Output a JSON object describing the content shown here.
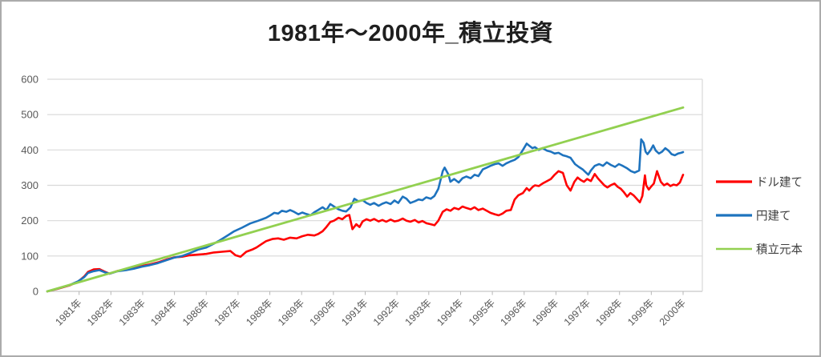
{
  "title": "1981年～2000年_積立投資",
  "colors": {
    "grid": "#d9d9d9",
    "axis_line": "#c6c6c6",
    "tick_mark": "#b7b7b7",
    "tick_text": "#595959",
    "title_text": "#1f1f1f",
    "legend_text": "#3f3f3f",
    "frame": "#ababab",
    "dollar_red": "#ff0000",
    "yen_blue": "#1e73be",
    "principal_green": "#92d050"
  },
  "chart_data": {
    "type": "line",
    "title": "1981年～2000年_積立投資",
    "xlabel": "",
    "ylabel": "",
    "ylim": [
      0,
      600
    ],
    "y_ticks": [
      0,
      100,
      200,
      300,
      400,
      500,
      600
    ],
    "grid": true,
    "legend_position": "right",
    "x_tick_labels": [
      "1981年",
      "1982年",
      "1983年",
      "1984年",
      "1986年",
      "1987年",
      "1988年",
      "1989年",
      "1990年",
      "1991年",
      "1992年",
      "1993年",
      "1994年",
      "1995年",
      "1996年",
      "1996年",
      "1997年",
      "1998年",
      "1999年",
      "2000年"
    ],
    "series": [
      {
        "name": "ドル建て",
        "color": "#ff0000",
        "points": [
          [
            0,
            0
          ],
          [
            1.6,
            7
          ],
          [
            3.5,
            17
          ],
          [
            4.8,
            27
          ],
          [
            5.8,
            42
          ],
          [
            6.4,
            55
          ],
          [
            7.3,
            62
          ],
          [
            8.2,
            63
          ],
          [
            9,
            56
          ],
          [
            9.8,
            50
          ],
          [
            11.1,
            58
          ],
          [
            12.4,
            62
          ],
          [
            13.6,
            66
          ],
          [
            14.9,
            72
          ],
          [
            16.1,
            76
          ],
          [
            17.4,
            82
          ],
          [
            18.7,
            90
          ],
          [
            19.9,
            96
          ],
          [
            21.2,
            98
          ],
          [
            22.4,
            102
          ],
          [
            23.7,
            104
          ],
          [
            25,
            106
          ],
          [
            26.2,
            110
          ],
          [
            27.5,
            112
          ],
          [
            28.8,
            114
          ],
          [
            29.6,
            102
          ],
          [
            30.4,
            98
          ],
          [
            31.3,
            112
          ],
          [
            32.2,
            118
          ],
          [
            32.9,
            124
          ],
          [
            33.8,
            135
          ],
          [
            34.4,
            142
          ],
          [
            35.4,
            148
          ],
          [
            36.3,
            150
          ],
          [
            37.2,
            146
          ],
          [
            38.2,
            152
          ],
          [
            39.2,
            150
          ],
          [
            40.1,
            156
          ],
          [
            41,
            160
          ],
          [
            42,
            158
          ],
          [
            42.6,
            162
          ],
          [
            43.3,
            170
          ],
          [
            43.9,
            182
          ],
          [
            44.5,
            196
          ],
          [
            45.1,
            200
          ],
          [
            45.8,
            208
          ],
          [
            46.4,
            204
          ],
          [
            47,
            213
          ],
          [
            47.5,
            216
          ],
          [
            48,
            176
          ],
          [
            48.6,
            190
          ],
          [
            49.1,
            182
          ],
          [
            49.6,
            198
          ],
          [
            50.2,
            204
          ],
          [
            50.8,
            200
          ],
          [
            51.4,
            205
          ],
          [
            52.1,
            198
          ],
          [
            52.7,
            202
          ],
          [
            53.3,
            197
          ],
          [
            54,
            203
          ],
          [
            54.6,
            198
          ],
          [
            55.2,
            200
          ],
          [
            55.9,
            206
          ],
          [
            56.5,
            200
          ],
          [
            57.1,
            197
          ],
          [
            57.8,
            202
          ],
          [
            58.4,
            195
          ],
          [
            59,
            199
          ],
          [
            59.6,
            193
          ],
          [
            60.3,
            190
          ],
          [
            60.9,
            187
          ],
          [
            61.5,
            200
          ],
          [
            62.2,
            225
          ],
          [
            62.8,
            232
          ],
          [
            63.4,
            228
          ],
          [
            64,
            236
          ],
          [
            64.7,
            232
          ],
          [
            65.3,
            240
          ],
          [
            65.9,
            236
          ],
          [
            66.6,
            232
          ],
          [
            67.2,
            238
          ],
          [
            67.8,
            230
          ],
          [
            68.5,
            234
          ],
          [
            69.1,
            228
          ],
          [
            69.7,
            222
          ],
          [
            70.4,
            218
          ],
          [
            71,
            215
          ],
          [
            71.6,
            220
          ],
          [
            72.2,
            228
          ],
          [
            72.9,
            230
          ],
          [
            73.5,
            260
          ],
          [
            74.1,
            272
          ],
          [
            74.8,
            278
          ],
          [
            75.4,
            292
          ],
          [
            75.8,
            285
          ],
          [
            76.3,
            295
          ],
          [
            76.7,
            300
          ],
          [
            77.3,
            298
          ],
          [
            77.9,
            305
          ],
          [
            78.6,
            312
          ],
          [
            79.2,
            318
          ],
          [
            79.8,
            330
          ],
          [
            80.4,
            340
          ],
          [
            81.1,
            335
          ],
          [
            81.7,
            300
          ],
          [
            82.3,
            285
          ],
          [
            82.9,
            310
          ],
          [
            83.4,
            322
          ],
          [
            83.9,
            315
          ],
          [
            84.4,
            310
          ],
          [
            84.9,
            318
          ],
          [
            85.5,
            312
          ],
          [
            86.1,
            332
          ],
          [
            86.6,
            320
          ],
          [
            87.1,
            310
          ],
          [
            87.6,
            300
          ],
          [
            88.1,
            294
          ],
          [
            88.6,
            300
          ],
          [
            89.2,
            305
          ],
          [
            89.7,
            296
          ],
          [
            90.2,
            290
          ],
          [
            90.7,
            280
          ],
          [
            91.2,
            268
          ],
          [
            91.7,
            278
          ],
          [
            92.2,
            272
          ],
          [
            92.7,
            262
          ],
          [
            93.2,
            252
          ],
          [
            93.6,
            270
          ],
          [
            94,
            328
          ],
          [
            94.2,
            300
          ],
          [
            94.6,
            288
          ],
          [
            94.9,
            295
          ],
          [
            95.4,
            305
          ],
          [
            95.9,
            340
          ],
          [
            96.5,
            310
          ],
          [
            97,
            300
          ],
          [
            97.5,
            305
          ],
          [
            98,
            298
          ],
          [
            98.5,
            302
          ],
          [
            99,
            300
          ],
          [
            99.5,
            308
          ],
          [
            100,
            330
          ]
        ]
      },
      {
        "name": "円建て",
        "color": "#1e73be",
        "points": [
          [
            0,
            0
          ],
          [
            1.6,
            8
          ],
          [
            3.5,
            18
          ],
          [
            4.8,
            28
          ],
          [
            5.8,
            40
          ],
          [
            6.4,
            52
          ],
          [
            7.3,
            57
          ],
          [
            8.2,
            60
          ],
          [
            9,
            54
          ],
          [
            9.8,
            50
          ],
          [
            11.1,
            57
          ],
          [
            12.4,
            60
          ],
          [
            13.6,
            64
          ],
          [
            14.9,
            70
          ],
          [
            16.1,
            74
          ],
          [
            17.4,
            80
          ],
          [
            18.7,
            88
          ],
          [
            19.9,
            95
          ],
          [
            21.2,
            100
          ],
          [
            22.4,
            108
          ],
          [
            23.7,
            118
          ],
          [
            25,
            124
          ],
          [
            26.2,
            135
          ],
          [
            26.9,
            142
          ],
          [
            28.1,
            155
          ],
          [
            29.4,
            170
          ],
          [
            30.6,
            180
          ],
          [
            31.9,
            192
          ],
          [
            33.2,
            200
          ],
          [
            34.4,
            208
          ],
          [
            35.1,
            215
          ],
          [
            35.7,
            222
          ],
          [
            36.3,
            220
          ],
          [
            36.9,
            228
          ],
          [
            37.6,
            225
          ],
          [
            38.2,
            230
          ],
          [
            38.8,
            225
          ],
          [
            39.5,
            218
          ],
          [
            40.1,
            223
          ],
          [
            40.7,
            219
          ],
          [
            41.4,
            215
          ],
          [
            42,
            224
          ],
          [
            42.6,
            230
          ],
          [
            43.3,
            238
          ],
          [
            43.9,
            230
          ],
          [
            44.5,
            247
          ],
          [
            45.1,
            240
          ],
          [
            45.8,
            232
          ],
          [
            46.4,
            228
          ],
          [
            47,
            226
          ],
          [
            47.7,
            238
          ],
          [
            48.3,
            262
          ],
          [
            48.9,
            255
          ],
          [
            49.6,
            258
          ],
          [
            50.2,
            250
          ],
          [
            50.8,
            245
          ],
          [
            51.4,
            250
          ],
          [
            52.1,
            242
          ],
          [
            52.7,
            248
          ],
          [
            53.3,
            252
          ],
          [
            54,
            247
          ],
          [
            54.6,
            257
          ],
          [
            55.2,
            250
          ],
          [
            55.9,
            268
          ],
          [
            56.5,
            262
          ],
          [
            57.1,
            250
          ],
          [
            57.8,
            255
          ],
          [
            58.4,
            260
          ],
          [
            59,
            258
          ],
          [
            59.6,
            266
          ],
          [
            60.3,
            262
          ],
          [
            60.9,
            270
          ],
          [
            61.5,
            290
          ],
          [
            62.2,
            340
          ],
          [
            62.5,
            350
          ],
          [
            63.1,
            330
          ],
          [
            63.4,
            310
          ],
          [
            64,
            318
          ],
          [
            64.7,
            308
          ],
          [
            65.3,
            320
          ],
          [
            65.9,
            325
          ],
          [
            66.6,
            320
          ],
          [
            67.2,
            330
          ],
          [
            67.8,
            326
          ],
          [
            68.5,
            345
          ],
          [
            69.1,
            350
          ],
          [
            69.7,
            355
          ],
          [
            70.4,
            360
          ],
          [
            71,
            362
          ],
          [
            71.6,
            355
          ],
          [
            72.2,
            362
          ],
          [
            72.9,
            368
          ],
          [
            73.5,
            372
          ],
          [
            74.1,
            380
          ],
          [
            74.8,
            400
          ],
          [
            75.4,
            418
          ],
          [
            75.8,
            412
          ],
          [
            76.3,
            405
          ],
          [
            76.7,
            408
          ],
          [
            77.3,
            400
          ],
          [
            77.9,
            405
          ],
          [
            78.6,
            398
          ],
          [
            79.2,
            395
          ],
          [
            79.8,
            390
          ],
          [
            80.4,
            392
          ],
          [
            81.1,
            385
          ],
          [
            81.7,
            382
          ],
          [
            82.3,
            378
          ],
          [
            83,
            360
          ],
          [
            83.6,
            352
          ],
          [
            84.2,
            345
          ],
          [
            84.6,
            338
          ],
          [
            85.1,
            330
          ],
          [
            85.5,
            342
          ],
          [
            86.1,
            355
          ],
          [
            86.8,
            360
          ],
          [
            87.4,
            355
          ],
          [
            88,
            365
          ],
          [
            88.6,
            358
          ],
          [
            89.3,
            352
          ],
          [
            89.9,
            360
          ],
          [
            90.5,
            355
          ],
          [
            91.2,
            348
          ],
          [
            91.8,
            340
          ],
          [
            92.4,
            336
          ],
          [
            93.1,
            342
          ],
          [
            93.4,
            430
          ],
          [
            93.8,
            420
          ],
          [
            94.1,
            395
          ],
          [
            94.4,
            388
          ],
          [
            94.9,
            400
          ],
          [
            95.3,
            413
          ],
          [
            95.7,
            398
          ],
          [
            96.2,
            390
          ],
          [
            96.7,
            395
          ],
          [
            97.2,
            405
          ],
          [
            97.7,
            398
          ],
          [
            98.2,
            388
          ],
          [
            98.7,
            385
          ],
          [
            99.2,
            390
          ],
          [
            99.7,
            392
          ],
          [
            100,
            394
          ]
        ]
      },
      {
        "name": "積立元本",
        "color": "#92d050",
        "points": [
          [
            0,
            0
          ],
          [
            100,
            520
          ]
        ]
      }
    ]
  }
}
